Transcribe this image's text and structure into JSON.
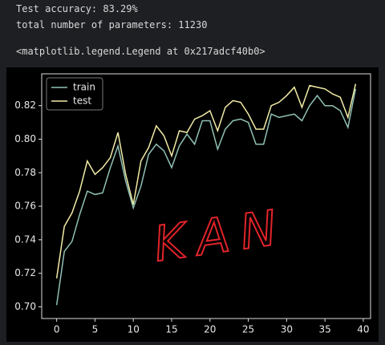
{
  "output_lines": [
    "Test accuracy: 83.29%",
    "total number of parameters: 11230",
    "<matplotlib.legend.Legend at 0x217adcf40b0>"
  ],
  "chart_data": {
    "type": "line",
    "x": [
      0,
      1,
      2,
      3,
      4,
      5,
      6,
      7,
      8,
      9,
      10,
      11,
      12,
      13,
      14,
      15,
      16,
      17,
      18,
      19,
      20,
      21,
      22,
      23,
      24,
      25,
      26,
      27,
      28,
      29,
      30,
      31,
      32,
      33,
      34,
      35,
      36,
      37,
      38,
      39
    ],
    "series": [
      {
        "name": "train",
        "color": "#8fc1b5",
        "values": [
          0.701,
          0.733,
          0.739,
          0.755,
          0.769,
          0.767,
          0.768,
          0.783,
          0.796,
          0.775,
          0.759,
          0.772,
          0.791,
          0.797,
          0.793,
          0.783,
          0.796,
          0.803,
          0.797,
          0.811,
          0.811,
          0.794,
          0.806,
          0.811,
          0.812,
          0.81,
          0.797,
          0.797,
          0.815,
          0.813,
          0.814,
          0.815,
          0.811,
          0.82,
          0.826,
          0.82,
          0.82,
          0.817,
          0.807,
          0.83
        ]
      },
      {
        "name": "test",
        "color": "#f2eca6",
        "values": [
          0.717,
          0.748,
          0.756,
          0.769,
          0.787,
          0.779,
          0.783,
          0.789,
          0.804,
          0.779,
          0.761,
          0.787,
          0.795,
          0.808,
          0.802,
          0.79,
          0.805,
          0.804,
          0.812,
          0.814,
          0.817,
          0.805,
          0.819,
          0.823,
          0.822,
          0.815,
          0.806,
          0.806,
          0.82,
          0.822,
          0.826,
          0.831,
          0.819,
          0.832,
          0.831,
          0.83,
          0.827,
          0.825,
          0.813,
          0.833
        ]
      }
    ],
    "xlim": [
      -1.95,
      40.95
    ],
    "xticks": [
      0,
      5,
      10,
      15,
      20,
      25,
      30,
      35,
      40
    ],
    "ylim": [
      0.693,
      0.839
    ],
    "yticks": [
      {
        "value": 0.7,
        "label": "0.70"
      },
      0.72,
      0.74,
      0.76,
      0.78,
      {
        "value": 0.8,
        "label": "0.80"
      },
      0.82
    ],
    "legend": "upper left",
    "annotations": [
      {
        "text": "KAN",
        "color": "#e0242a"
      }
    ]
  }
}
